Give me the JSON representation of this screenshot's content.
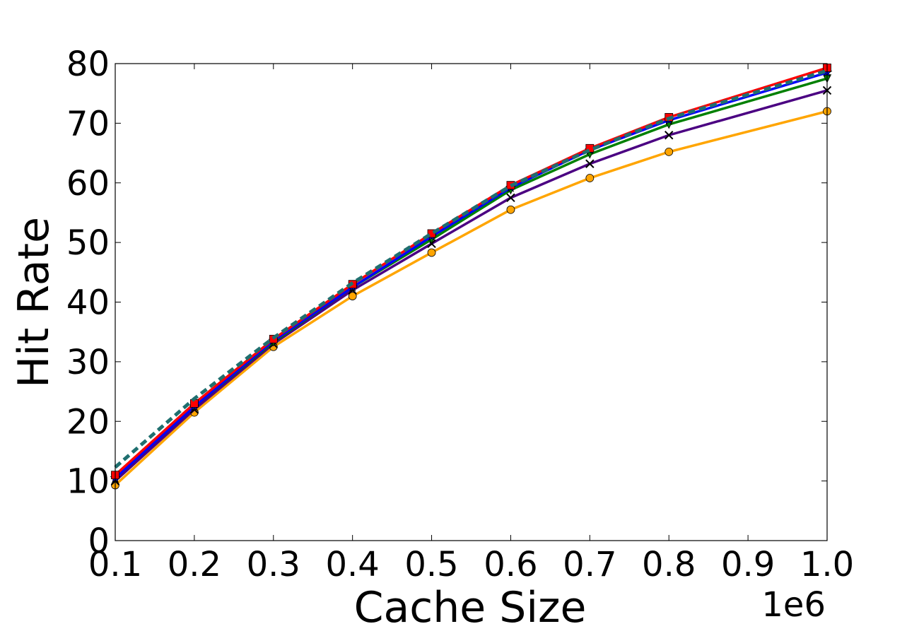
{
  "chart_data": {
    "type": "line",
    "x_label": "Cache Size",
    "y_label": "Hit Rate",
    "x_offset_label": "1e6",
    "x": [
      0.1,
      0.2,
      0.3,
      0.4,
      0.5,
      0.6,
      0.7,
      0.8,
      1.0
    ],
    "xlim": [
      0.1,
      1.0
    ],
    "xticks": [
      0.1,
      0.2,
      0.3,
      0.4,
      0.5,
      0.6,
      0.7,
      0.8,
      0.9,
      {
        "value": 1.0,
        "label": "1.0"
      }
    ],
    "ylim": [
      0,
      80
    ],
    "yticks": [
      0,
      10,
      20,
      30,
      40,
      50,
      60,
      70,
      80
    ],
    "grid": false,
    "series": [
      {
        "color": "#ffa500",
        "marker": "circle",
        "dash": false,
        "values": [
          9.3,
          21.5,
          32.5,
          41,
          48.3,
          55.5,
          60.8,
          65.2,
          72
        ]
      },
      {
        "color": "#4b0082",
        "marker": "x",
        "dash": false,
        "values": [
          10,
          22,
          33,
          42,
          49.8,
          57.5,
          63.2,
          68,
          75.5
        ]
      },
      {
        "color": "#008000",
        "marker": "triangle-down",
        "dash": false,
        "values": [
          10.5,
          22.5,
          33.3,
          42.5,
          50.5,
          58.8,
          64.8,
          69.8,
          77.5
        ]
      },
      {
        "color": "#0000ff",
        "marker": "star",
        "dash": false,
        "values": [
          10.5,
          22.5,
          33.5,
          42.5,
          51,
          59.2,
          65.5,
          70.5,
          78.5
        ]
      },
      {
        "color": "#ff0000",
        "marker": "square",
        "dash": false,
        "values": [
          11,
          23,
          33.8,
          43,
          51.5,
          59.6,
          65.8,
          71,
          79.3
        ]
      },
      {
        "color": "#1f6f6f",
        "marker": "none",
        "dash": true,
        "values": [
          12.3,
          23.8,
          34,
          43.2,
          51.5,
          59.5,
          65.5,
          70.8,
          78.8
        ]
      }
    ]
  }
}
